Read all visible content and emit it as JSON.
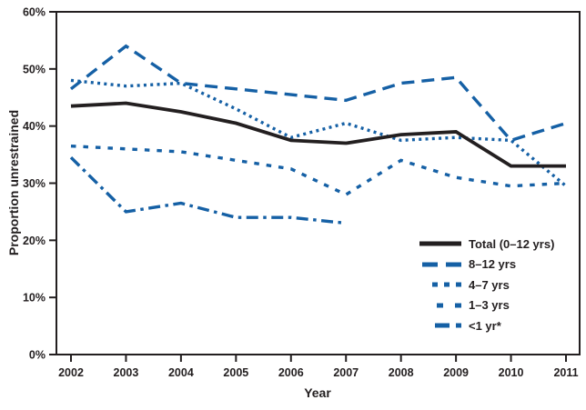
{
  "figure_name": "proportion-unrestrained-by-age-line-chart",
  "colors": {
    "line_blue": "#1560a5",
    "line_black": "#231f20",
    "axis": "#231f20",
    "background": "#ffffff"
  },
  "chart_data": {
    "type": "line",
    "xlabel": "Year",
    "ylabel": "Proportion unrestrained",
    "x": [
      2002,
      2003,
      2004,
      2005,
      2006,
      2007,
      2008,
      2009,
      2010,
      2011
    ],
    "x_tick_labels": [
      "2002",
      "2003",
      "2004",
      "2005",
      "2006",
      "2007",
      "2008",
      "2009",
      "2010",
      "2011"
    ],
    "ylim": [
      0,
      60
    ],
    "y_tick_step": 10,
    "y_tick_labels": [
      "0%",
      "10%",
      "20%",
      "30%",
      "40%",
      "50%",
      "60%"
    ],
    "grid": false,
    "legend_position": "inside lower right",
    "series": [
      {
        "name": "Total (0–12 yrs)",
        "color": "#231f20",
        "style": "solid",
        "values": [
          43.5,
          44,
          42.5,
          40.5,
          37.5,
          37,
          38.5,
          39,
          33,
          33
        ]
      },
      {
        "name": "8–12 yrs",
        "color": "#1560a5",
        "style": "long-dash",
        "values": [
          46.5,
          54,
          47.5,
          46.5,
          45.5,
          44.5,
          47.5,
          48.5,
          37.5,
          40.5
        ]
      },
      {
        "name": "4–7 yrs",
        "color": "#1560a5",
        "style": "dotted",
        "values": [
          48,
          47,
          47.5,
          43,
          38,
          40.5,
          37.5,
          38,
          37.5,
          29.5
        ]
      },
      {
        "name": "1–3 yrs",
        "color": "#1560a5",
        "style": "dashed",
        "values": [
          36.5,
          36,
          35.5,
          34,
          32.5,
          28,
          34,
          31,
          29.5,
          30
        ]
      },
      {
        "name": "<1 yr*",
        "color": "#1560a5",
        "style": "dash-dot",
        "values": [
          34.5,
          25,
          26.5,
          24,
          24,
          23,
          null,
          null,
          null,
          null
        ]
      }
    ]
  }
}
